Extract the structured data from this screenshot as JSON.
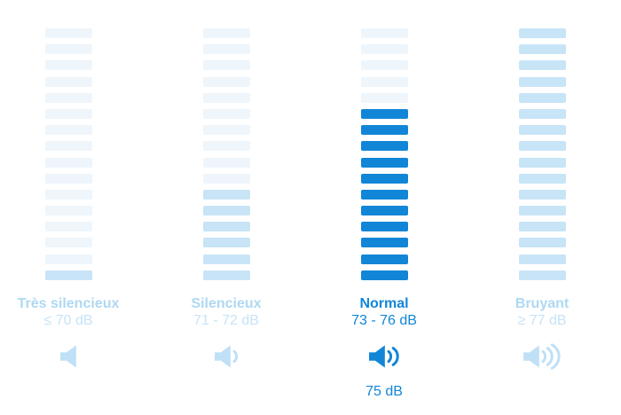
{
  "chart_data": {
    "type": "bar",
    "title": "",
    "categories": [
      "Très silencieux",
      "Silencieux",
      "Normal",
      "Bruyant"
    ],
    "category_ranges": [
      "≤ 70 dB",
      "71 - 72 dB",
      "73 - 76 dB",
      "≥ 77 dB"
    ],
    "values": [
      1,
      6,
      11,
      16
    ],
    "value_meaning": "filled meter segments out of 16",
    "ylim": [
      0,
      16
    ],
    "grid": false,
    "legend": "none",
    "selected_category": "Normal",
    "selected_value_label": "75 dB"
  },
  "columns": [
    {
      "id": "tres-silencieux",
      "title": "Très silencieux",
      "range": "≤ 70 dB",
      "filled_bars": 1,
      "total_bars": 16,
      "speaker_waves": 0,
      "state": "dim",
      "note": ""
    },
    {
      "id": "silencieux",
      "title": "Silencieux",
      "range": "71 - 72 dB",
      "filled_bars": 6,
      "total_bars": 16,
      "speaker_waves": 1,
      "state": "dim",
      "note": ""
    },
    {
      "id": "normal",
      "title": "Normal",
      "range": "73 - 76 dB",
      "filled_bars": 11,
      "total_bars": 16,
      "speaker_waves": 2,
      "state": "selected",
      "note": "75 dB"
    },
    {
      "id": "bruyant",
      "title": "Bruyant",
      "range": "≥ 77 dB",
      "filled_bars": 16,
      "total_bars": 16,
      "speaker_waves": 3,
      "state": "dim",
      "note": ""
    }
  ],
  "colors": {
    "accent": "#1186d7",
    "filled_bar": "#c8e4f7",
    "empty_bar": "#eef5fb",
    "dim_title": "#aed8f3",
    "dim_range": "#c7e3f7",
    "dim_icon": "#bfe0f6",
    "background": "#ffffff"
  }
}
